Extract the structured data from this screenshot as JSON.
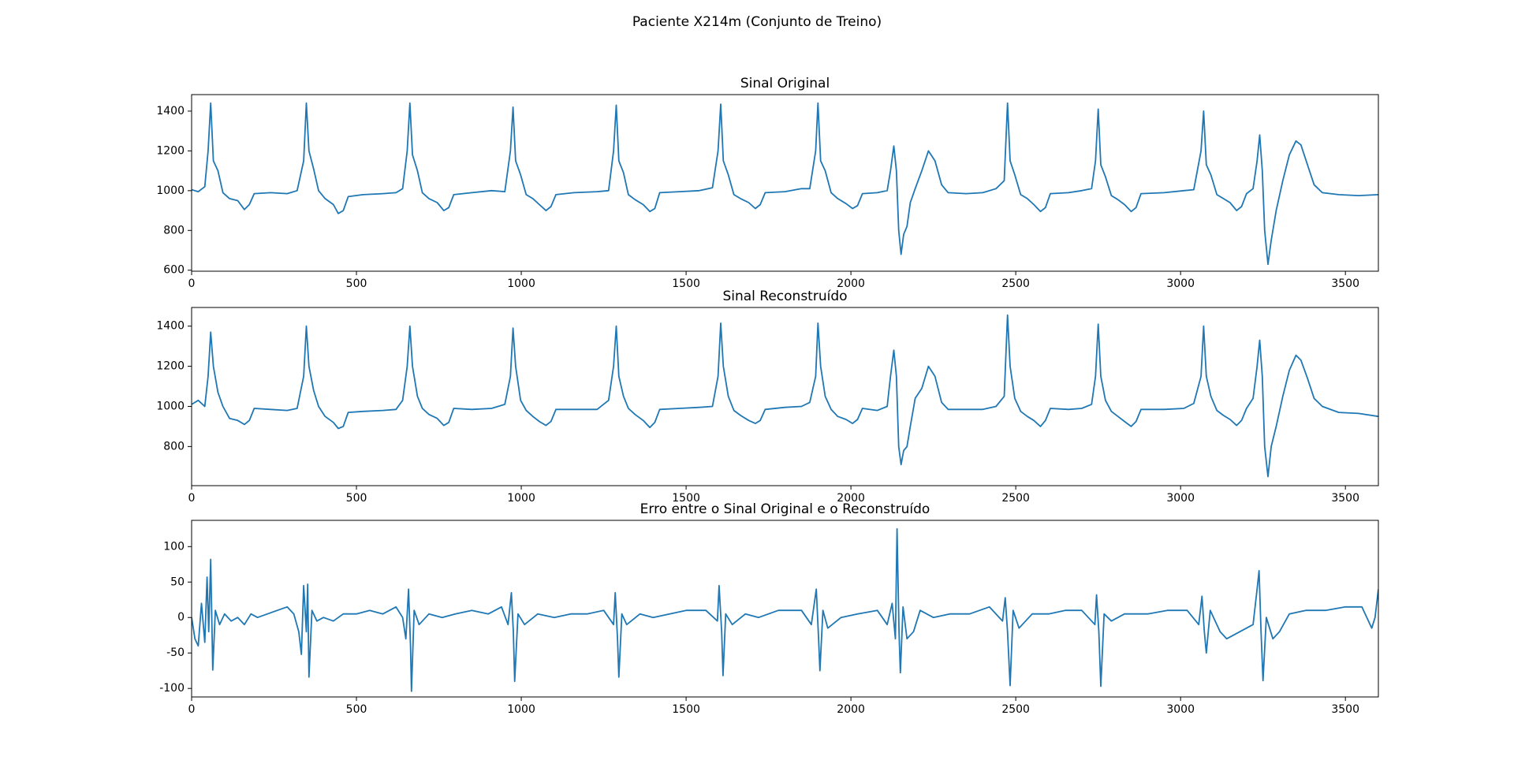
{
  "title": "Paciente X214m (Conjunto de Treino)",
  "chart_data": [
    {
      "type": "line",
      "title": "Sinal Original",
      "color": "#1f77b4",
      "xlim": [
        0,
        3600
      ],
      "xticks": [
        0,
        500,
        1000,
        1500,
        2000,
        2500,
        3000,
        3500
      ],
      "ylim": [
        595,
        1483
      ],
      "yticks": [
        600,
        800,
        1000,
        1200,
        1400
      ],
      "x": [
        0,
        20,
        40,
        50,
        58,
        66,
        80,
        95,
        115,
        140,
        160,
        175,
        190,
        240,
        290,
        320,
        340,
        348,
        356,
        370,
        385,
        405,
        430,
        445,
        460,
        475,
        520,
        580,
        620,
        640,
        654,
        662,
        670,
        685,
        700,
        720,
        745,
        765,
        780,
        795,
        850,
        910,
        950,
        967,
        975,
        983,
        998,
        1015,
        1035,
        1055,
        1075,
        1090,
        1105,
        1160,
        1230,
        1265,
        1280,
        1288,
        1296,
        1310,
        1325,
        1345,
        1370,
        1390,
        1405,
        1420,
        1480,
        1540,
        1580,
        1597,
        1605,
        1613,
        1628,
        1645,
        1665,
        1690,
        1710,
        1725,
        1740,
        1800,
        1850,
        1875,
        1893,
        1900,
        1908,
        1922,
        1940,
        1960,
        1985,
        2005,
        2020,
        2035,
        2080,
        2110,
        2120,
        2130,
        2138,
        2145,
        2152,
        2160,
        2170,
        2180,
        2195,
        2215,
        2235,
        2255,
        2275,
        2295,
        2350,
        2400,
        2440,
        2465,
        2475,
        2483,
        2497,
        2515,
        2535,
        2555,
        2575,
        2590,
        2605,
        2660,
        2700,
        2730,
        2742,
        2750,
        2758,
        2772,
        2790,
        2810,
        2830,
        2850,
        2865,
        2880,
        2950,
        3010,
        3040,
        3062,
        3070,
        3078,
        3092,
        3110,
        3130,
        3150,
        3170,
        3185,
        3200,
        3220,
        3232,
        3240,
        3248,
        3255,
        3265,
        3275,
        3290,
        3310,
        3330,
        3350,
        3365,
        3385,
        3405,
        3430,
        3480,
        3540,
        3600
      ],
      "values": [
        1005,
        995,
        1020,
        1200,
        1440,
        1150,
        1100,
        990,
        960,
        950,
        905,
        930,
        985,
        990,
        985,
        1000,
        1150,
        1440,
        1200,
        1110,
        1000,
        960,
        930,
        885,
        900,
        970,
        980,
        985,
        990,
        1010,
        1200,
        1440,
        1180,
        1100,
        990,
        960,
        940,
        900,
        915,
        980,
        990,
        1000,
        995,
        1200,
        1420,
        1150,
        1080,
        980,
        960,
        930,
        900,
        920,
        980,
        990,
        995,
        1000,
        1200,
        1430,
        1150,
        1090,
        980,
        955,
        930,
        895,
        910,
        990,
        995,
        1000,
        1015,
        1200,
        1435,
        1150,
        1080,
        980,
        960,
        940,
        910,
        930,
        990,
        995,
        1010,
        1010,
        1200,
        1440,
        1150,
        1100,
        990,
        960,
        935,
        910,
        925,
        985,
        990,
        1000,
        1100,
        1225,
        1100,
        800,
        680,
        780,
        820,
        940,
        1010,
        1100,
        1200,
        1150,
        1030,
        990,
        985,
        990,
        1010,
        1050,
        1440,
        1150,
        1080,
        980,
        960,
        930,
        895,
        915,
        985,
        990,
        1000,
        1010,
        1150,
        1410,
        1130,
        1070,
        975,
        955,
        930,
        895,
        915,
        985,
        990,
        1000,
        1005,
        1200,
        1400,
        1130,
        1080,
        980,
        960,
        940,
        900,
        920,
        985,
        1010,
        1150,
        1280,
        1100,
        800,
        630,
        750,
        900,
        1050,
        1180,
        1250,
        1230,
        1130,
        1030,
        990,
        980,
        975,
        980
      ]
    },
    {
      "type": "line",
      "title": "Sinal Reconstruído",
      "color": "#1f77b4",
      "xlim": [
        0,
        3600
      ],
      "xticks": [
        0,
        500,
        1000,
        1500,
        2000,
        2500,
        3000,
        3500
      ],
      "ylim": [
        605,
        1493
      ],
      "yticks": [
        800,
        1000,
        1200,
        1400
      ],
      "x": [
        0,
        20,
        40,
        50,
        58,
        66,
        80,
        95,
        115,
        140,
        160,
        175,
        190,
        240,
        290,
        320,
        340,
        348,
        356,
        370,
        385,
        405,
        430,
        445,
        460,
        475,
        520,
        580,
        620,
        640,
        654,
        662,
        670,
        685,
        700,
        720,
        745,
        765,
        780,
        795,
        850,
        910,
        950,
        967,
        975,
        983,
        998,
        1015,
        1035,
        1055,
        1075,
        1090,
        1105,
        1160,
        1230,
        1265,
        1280,
        1288,
        1296,
        1310,
        1325,
        1345,
        1370,
        1390,
        1405,
        1420,
        1480,
        1540,
        1580,
        1597,
        1605,
        1613,
        1628,
        1645,
        1665,
        1690,
        1710,
        1725,
        1740,
        1800,
        1850,
        1875,
        1893,
        1900,
        1908,
        1922,
        1940,
        1960,
        1985,
        2005,
        2020,
        2035,
        2080,
        2110,
        2120,
        2130,
        2138,
        2145,
        2152,
        2160,
        2170,
        2180,
        2195,
        2215,
        2235,
        2255,
        2275,
        2295,
        2350,
        2400,
        2440,
        2465,
        2475,
        2483,
        2497,
        2515,
        2535,
        2555,
        2575,
        2590,
        2605,
        2660,
        2700,
        2730,
        2742,
        2750,
        2758,
        2772,
        2790,
        2810,
        2830,
        2850,
        2865,
        2880,
        2950,
        3010,
        3040,
        3062,
        3070,
        3078,
        3092,
        3110,
        3130,
        3150,
        3170,
        3185,
        3200,
        3220,
        3232,
        3240,
        3248,
        3255,
        3265,
        3275,
        3290,
        3310,
        3330,
        3350,
        3365,
        3385,
        3405,
        3430,
        3480,
        3540,
        3600
      ],
      "values": [
        1010,
        1030,
        1000,
        1150,
        1370,
        1200,
        1070,
        1000,
        940,
        930,
        910,
        930,
        990,
        985,
        980,
        990,
        1150,
        1400,
        1200,
        1080,
        1000,
        950,
        920,
        890,
        900,
        970,
        975,
        980,
        985,
        1030,
        1200,
        1400,
        1200,
        1050,
        990,
        960,
        940,
        905,
        920,
        990,
        985,
        990,
        1010,
        1150,
        1390,
        1200,
        1030,
        980,
        950,
        925,
        905,
        925,
        985,
        985,
        985,
        1030,
        1200,
        1400,
        1150,
        1050,
        990,
        960,
        930,
        895,
        920,
        985,
        990,
        995,
        1000,
        1150,
        1415,
        1200,
        1050,
        980,
        955,
        930,
        915,
        930,
        985,
        995,
        1000,
        1020,
        1150,
        1415,
        1200,
        1050,
        985,
        950,
        935,
        915,
        935,
        990,
        980,
        1000,
        1150,
        1280,
        1150,
        800,
        710,
        780,
        800,
        900,
        1040,
        1090,
        1200,
        1150,
        1020,
        985,
        985,
        985,
        1000,
        1050,
        1455,
        1200,
        1040,
        975,
        950,
        930,
        900,
        930,
        990,
        985,
        990,
        1010,
        1150,
        1410,
        1150,
        1030,
        975,
        950,
        925,
        900,
        925,
        985,
        985,
        990,
        1015,
        1150,
        1400,
        1150,
        1050,
        980,
        955,
        935,
        905,
        930,
        990,
        1040,
        1200,
        1330,
        1150,
        800,
        650,
        800,
        900,
        1050,
        1180,
        1255,
        1230,
        1140,
        1040,
        1000,
        970,
        965,
        950
      ]
    },
    {
      "type": "line",
      "title": "Erro entre o Sinal Original e o Reconstruído",
      "color": "#1f77b4",
      "xlim": [
        0,
        3600
      ],
      "xticks": [
        0,
        500,
        1000,
        1500,
        2000,
        2500,
        3000,
        3500
      ],
      "ylim": [
        -112,
        137
      ],
      "yticks": [
        -100,
        -50,
        0,
        50,
        100
      ],
      "x": [
        0,
        10,
        20,
        30,
        40,
        47,
        52,
        58,
        64,
        72,
        85,
        100,
        120,
        140,
        160,
        180,
        200,
        230,
        260,
        290,
        310,
        325,
        333,
        340,
        348,
        352,
        356,
        365,
        380,
        400,
        430,
        460,
        500,
        540,
        580,
        620,
        640,
        650,
        658,
        664,
        667,
        675,
        690,
        720,
        760,
        800,
        850,
        900,
        940,
        960,
        970,
        976,
        980,
        990,
        1010,
        1050,
        1100,
        1150,
        1200,
        1250,
        1280,
        1285,
        1292,
        1296,
        1305,
        1320,
        1360,
        1400,
        1450,
        1500,
        1560,
        1595,
        1600,
        1608,
        1612,
        1620,
        1640,
        1680,
        1720,
        1780,
        1850,
        1880,
        1895,
        1902,
        1906,
        1915,
        1930,
        1970,
        2020,
        2080,
        2110,
        2125,
        2135,
        2140,
        2146,
        2150,
        2158,
        2170,
        2190,
        2210,
        2250,
        2300,
        2360,
        2420,
        2460,
        2468,
        2475,
        2483,
        2492,
        2510,
        2550,
        2600,
        2650,
        2700,
        2740,
        2745,
        2752,
        2758,
        2768,
        2790,
        2830,
        2900,
        2960,
        3020,
        3055,
        3065,
        3072,
        3078,
        3090,
        3120,
        3140,
        3180,
        3220,
        3232,
        3238,
        3244,
        3250,
        3260,
        3280,
        3300,
        3330,
        3380,
        3440,
        3500,
        3550,
        3580,
        3590,
        3600
      ],
      "values": [
        0,
        -30,
        -40,
        20,
        -35,
        57,
        -20,
        82,
        -74,
        10,
        -10,
        5,
        -5,
        0,
        -10,
        5,
        0,
        5,
        10,
        15,
        5,
        -20,
        -52,
        45,
        -20,
        47,
        -84,
        10,
        -5,
        0,
        -5,
        5,
        5,
        10,
        5,
        15,
        0,
        -30,
        40,
        -40,
        -104,
        10,
        -10,
        5,
        0,
        5,
        10,
        5,
        15,
        -10,
        35,
        -20,
        -90,
        5,
        -10,
        5,
        0,
        5,
        5,
        10,
        -10,
        35,
        -30,
        -84,
        5,
        -10,
        5,
        0,
        5,
        10,
        10,
        -5,
        45,
        -20,
        -82,
        5,
        -10,
        5,
        0,
        10,
        10,
        -10,
        40,
        -30,
        -75,
        10,
        -15,
        0,
        5,
        10,
        -10,
        20,
        -30,
        125,
        -20,
        -78,
        15,
        -30,
        -20,
        10,
        0,
        5,
        5,
        15,
        -5,
        28,
        -20,
        -96,
        10,
        -15,
        5,
        5,
        10,
        10,
        -10,
        32,
        -20,
        -97,
        5,
        -5,
        5,
        5,
        10,
        10,
        -10,
        30,
        -20,
        -50,
        10,
        -20,
        -30,
        -20,
        -10,
        40,
        66,
        -20,
        -89,
        0,
        -30,
        -20,
        5,
        10,
        10,
        15,
        15,
        -15,
        0,
        40
      ]
    }
  ]
}
